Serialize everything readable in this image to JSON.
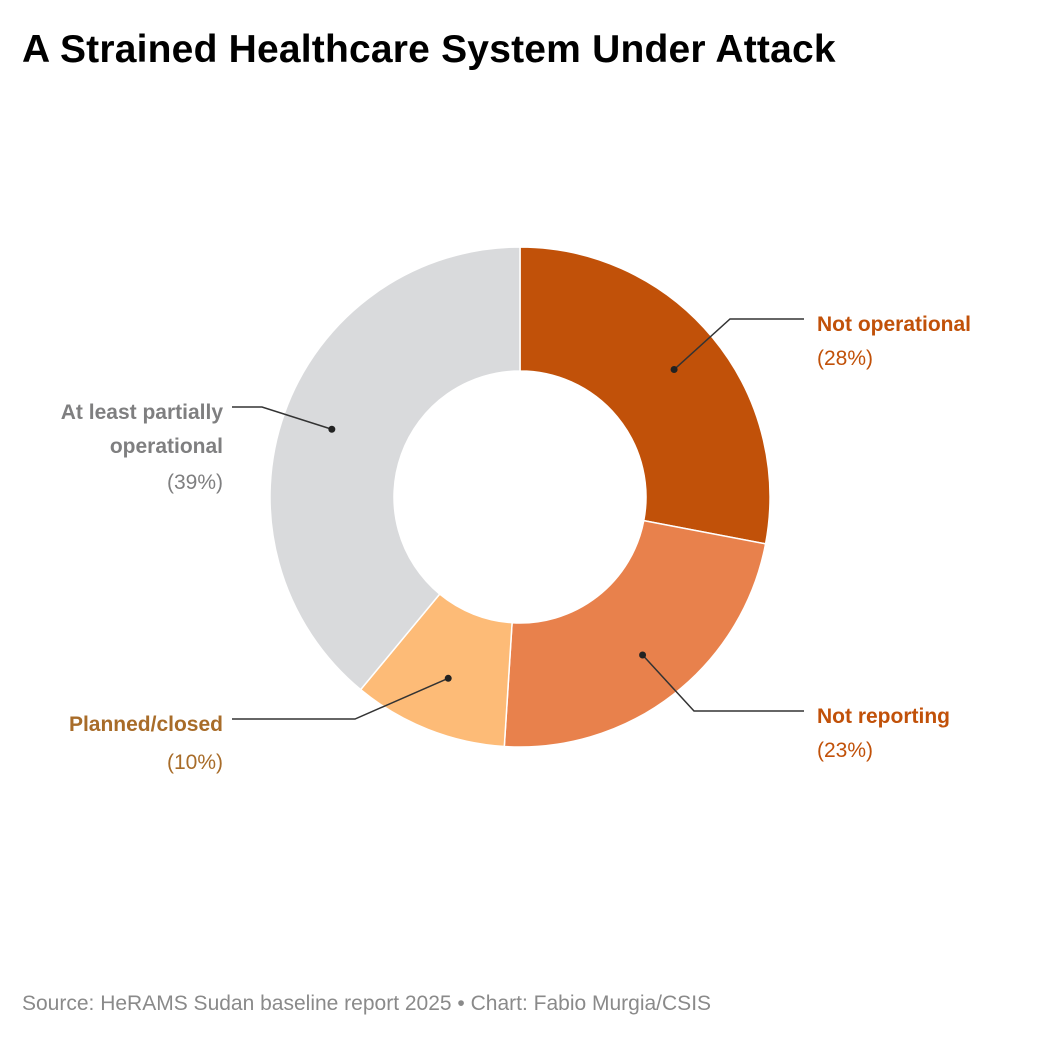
{
  "title": "A Strained Healthcare System Under Attack",
  "source": "Source: HeRAMS Sudan baseline report 2025 • Chart: Fabio Murgia/CSIS",
  "chart_data": {
    "type": "pie",
    "title": "A Strained Healthcare System Under Attack",
    "categories": [
      "Not operational",
      "Not reporting",
      "Planned/closed",
      "At least partially operational"
    ],
    "values": [
      28,
      23,
      10,
      39
    ],
    "unit": "%",
    "donut": true,
    "slices": [
      {
        "label": "Not operational",
        "value": 28,
        "pct_label": "(28%)",
        "color": "#c15109",
        "label_color": "#c15109"
      },
      {
        "label": "Not reporting",
        "value": 23,
        "pct_label": "(23%)",
        "color": "#e8814c",
        "label_color": "#c15109"
      },
      {
        "label": "Planned/closed",
        "value": 10,
        "pct_label": "(10%)",
        "color": "#fdbb77",
        "label_color": "#a86c29"
      },
      {
        "label": "At least partially operational",
        "value": 39,
        "pct_label": "(39%)",
        "color": "#d9dadc",
        "label_color": "#7f7f80"
      }
    ]
  }
}
